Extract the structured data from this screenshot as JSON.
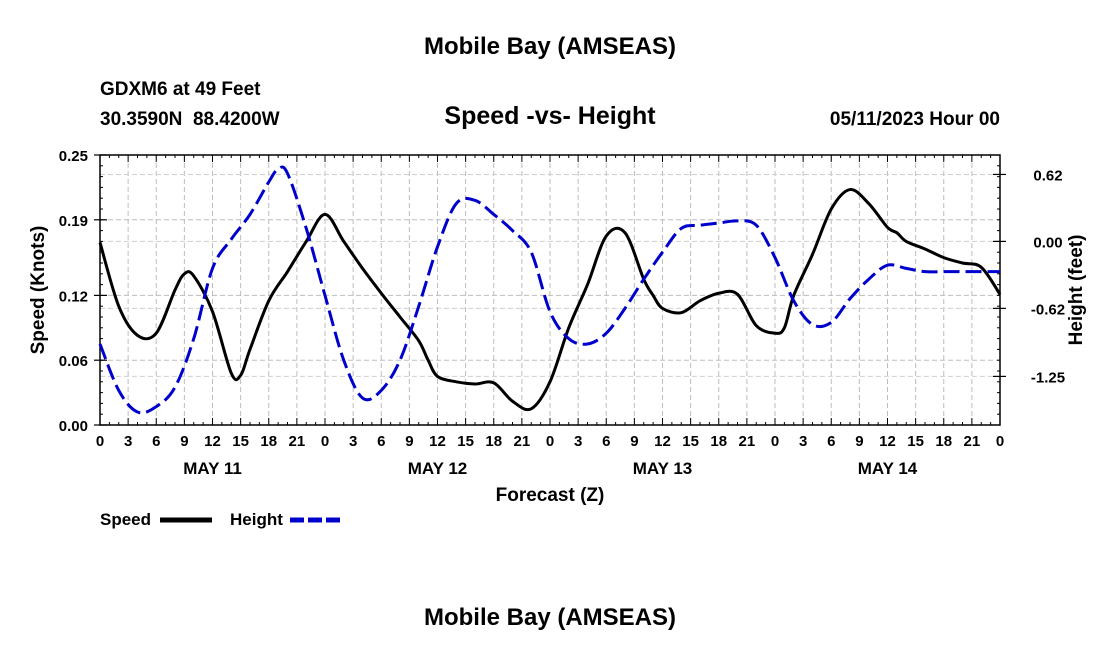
{
  "chart_data": {
    "type": "line",
    "title": "Mobile Bay (AMSEAS)",
    "subtitle": "Speed -vs- Height",
    "station": {
      "name": "GDXM6 at 49 Feet",
      "coords": "30.3590N  88.4200W"
    },
    "run_time": "05/11/2023 Hour 00",
    "xlabel": "Forecast (Z)",
    "ylabel_left": "Speed (Knots)",
    "ylabel_right": "Height (feet)",
    "x_tick_labels": [
      "0",
      "3",
      "6",
      "9",
      "12",
      "15",
      "18",
      "21",
      "0",
      "3",
      "6",
      "9",
      "12",
      "15",
      "18",
      "21",
      "0",
      "3",
      "6",
      "9",
      "12",
      "15",
      "18",
      "21",
      "0",
      "3",
      "6",
      "9",
      "12",
      "15",
      "18",
      "21",
      "0"
    ],
    "day_labels": [
      {
        "label": "MAY 11",
        "hour": 12
      },
      {
        "label": "MAY 12",
        "hour": 36
      },
      {
        "label": "MAY 13",
        "hour": 60
      },
      {
        "label": "MAY 14",
        "hour": 84
      }
    ],
    "xlim": [
      0,
      96
    ],
    "ylim_left": [
      0,
      0.25
    ],
    "y_ticks_left": [
      0.0,
      0.06,
      0.12,
      0.19,
      0.25
    ],
    "y_tick_labels_left": [
      "0.00",
      "0.06",
      "0.12",
      "0.19",
      "0.25"
    ],
    "ylim_right": [
      -1.7,
      0.8
    ],
    "y_ticks_right": [
      -1.25,
      -0.62,
      0.0,
      0.62
    ],
    "y_tick_labels_right": [
      "-1.25",
      "-0.62",
      "0.00",
      "0.62"
    ],
    "grid": true,
    "legend_position": "bottom-left",
    "series": [
      {
        "name": "Speed",
        "axis": "left",
        "color": "#000000",
        "style": "solid",
        "x": [
          0,
          2,
          4,
          6,
          8,
          9,
          10,
          12,
          14,
          15,
          16,
          18,
          20,
          22,
          24,
          26,
          28,
          30,
          32,
          34,
          35,
          36,
          38,
          40,
          42,
          44,
          46,
          48,
          50,
          52,
          54,
          56,
          58,
          59,
          60,
          62,
          64,
          66,
          68,
          70,
          72,
          73,
          74,
          76,
          78,
          80,
          82,
          84,
          85,
          86,
          88,
          90,
          92,
          94,
          96
        ],
        "values": [
          0.169,
          0.11,
          0.083,
          0.085,
          0.125,
          0.14,
          0.138,
          0.105,
          0.048,
          0.046,
          0.07,
          0.115,
          0.142,
          0.17,
          0.195,
          0.17,
          0.145,
          0.122,
          0.1,
          0.078,
          0.06,
          0.045,
          0.04,
          0.038,
          0.039,
          0.022,
          0.015,
          0.04,
          0.09,
          0.13,
          0.175,
          0.178,
          0.135,
          0.12,
          0.108,
          0.104,
          0.115,
          0.122,
          0.121,
          0.092,
          0.085,
          0.09,
          0.12,
          0.158,
          0.2,
          0.218,
          0.205,
          0.183,
          0.178,
          0.17,
          0.163,
          0.155,
          0.15,
          0.146,
          0.121
        ]
      },
      {
        "name": "Height",
        "axis": "right",
        "color": "#0000cc",
        "style": "dashed",
        "x": [
          0,
          2,
          4,
          6,
          8,
          10,
          12,
          14,
          16,
          18,
          19,
          20,
          22,
          24,
          26,
          28,
          30,
          32,
          34,
          36,
          38,
          40,
          42,
          44,
          46,
          48,
          50,
          52,
          54,
          56,
          58,
          60,
          62,
          64,
          66,
          68,
          70,
          72,
          74,
          76,
          78,
          80,
          82,
          84,
          86,
          88,
          90,
          92,
          94,
          96
        ],
        "values": [
          -0.95,
          -1.38,
          -1.58,
          -1.53,
          -1.35,
          -0.9,
          -0.25,
          0.02,
          0.25,
          0.55,
          0.67,
          0.63,
          0.12,
          -0.5,
          -1.1,
          -1.45,
          -1.38,
          -1.1,
          -0.6,
          -0.05,
          0.35,
          0.38,
          0.25,
          0.1,
          -0.1,
          -0.65,
          -0.9,
          -0.95,
          -0.85,
          -0.62,
          -0.35,
          -0.1,
          0.12,
          0.15,
          0.17,
          0.19,
          0.15,
          -0.15,
          -0.55,
          -0.77,
          -0.75,
          -0.53,
          -0.35,
          -0.22,
          -0.25,
          -0.28,
          -0.28,
          -0.28,
          -0.28,
          -0.28
        ]
      }
    ],
    "legend": [
      {
        "label": "Speed",
        "color": "#000000",
        "style": "solid"
      },
      {
        "label": "Height",
        "color": "#0000cc",
        "style": "dashed"
      }
    ],
    "footer_title": "Mobile Bay (AMSEAS)"
  }
}
